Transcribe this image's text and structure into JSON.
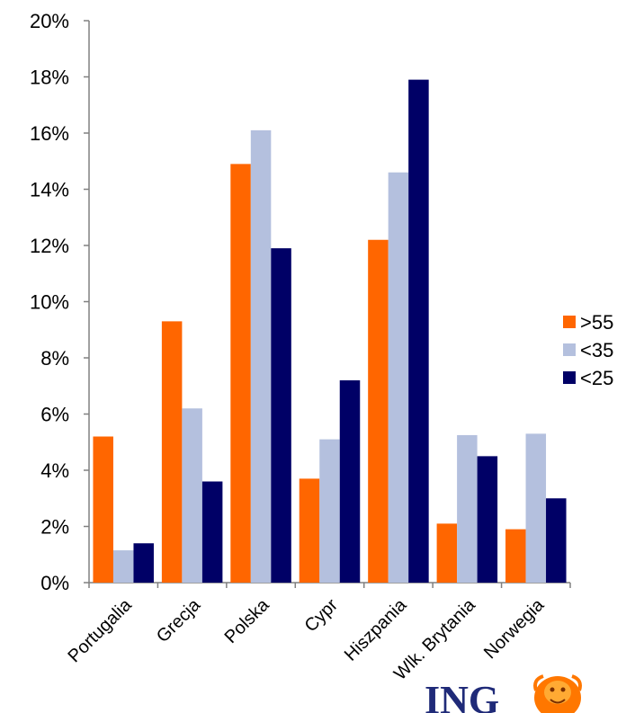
{
  "chart_data": {
    "type": "bar",
    "categories": [
      "Portugalia",
      "Grecja",
      "Polska",
      "Cypr",
      "Hiszpania",
      "Wlk. Brytania",
      "Norwegia"
    ],
    "series": [
      {
        "name": ">55",
        "color": "#ff6600",
        "values": [
          5.2,
          9.3,
          14.9,
          3.7,
          12.2,
          2.1,
          1.9
        ]
      },
      {
        "name": "<35",
        "color": "#b4c0de",
        "values": [
          1.15,
          6.2,
          16.1,
          5.1,
          14.6,
          5.25,
          5.3
        ]
      },
      {
        "name": "<25",
        "color": "#000066",
        "values": [
          1.4,
          3.6,
          11.9,
          7.2,
          17.9,
          4.5,
          3.0
        ]
      }
    ],
    "y_ticks": [
      "0%",
      "2%",
      "4%",
      "6%",
      "8%",
      "10%",
      "12%",
      "14%",
      "16%",
      "18%",
      "20%"
    ],
    "ylim": [
      0,
      20
    ],
    "legend_position": "right",
    "grid": false
  },
  "logo": {
    "text": "ING",
    "icon": "lion-icon"
  }
}
